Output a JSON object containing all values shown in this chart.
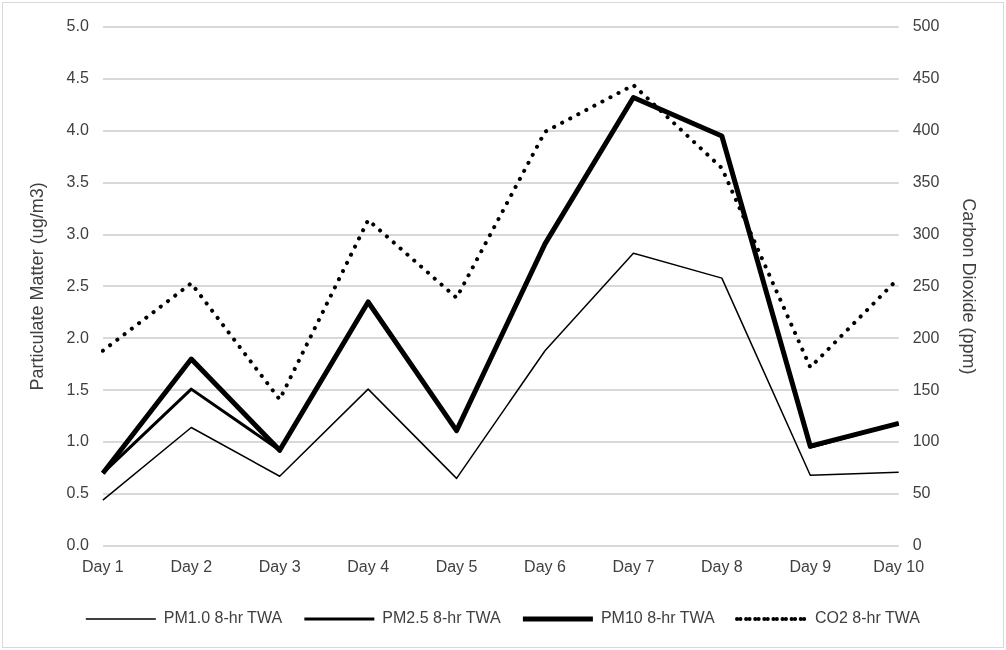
{
  "chart_data": {
    "type": "line",
    "categories": [
      "Day 1",
      "Day 2",
      "Day 3",
      "Day 4",
      "Day 5",
      "Day 6",
      "Day 7",
      "Day 8",
      "Day 9",
      "Day 10"
    ],
    "series": [
      {
        "name": "PM1.0 8-hr TWA",
        "color": "#000000",
        "line_style": "solid",
        "values": [
          0.44,
          1.14,
          0.67,
          1.51,
          0.65,
          1.88,
          2.82,
          2.58,
          0.68,
          0.71
        ]
      },
      {
        "name": "PM2.5 8-hr TWA",
        "color": "#000000",
        "line_style": "solid",
        "values": [
          0.7,
          1.51,
          0.92,
          2.35,
          1.11,
          2.91,
          4.32,
          3.95,
          0.95,
          1.18
        ]
      },
      {
        "name": "PM10 8-hr TWA",
        "color": "#000000",
        "line_style": "solid",
        "values": [
          0.7,
          1.8,
          0.92,
          2.35,
          1.11,
          2.91,
          4.32,
          3.95,
          0.96,
          1.18
        ]
      },
      {
        "name": "CO2 8-hr TWA",
        "color": "#000000",
        "line_style": "dotted",
        "axis": "y2",
        "values": [
          188,
          253,
          141,
          314,
          239,
          399,
          444,
          364,
          172,
          258
        ]
      }
    ],
    "ylabel": "Particulate Matter (ug/m3)",
    "y2label": "Carbon Dioxide (ppm)",
    "ylim": [
      0,
      5
    ],
    "yticks": [
      {
        "value": 0,
        "label": "0.0"
      },
      {
        "value": 0.5,
        "label": "0.5"
      },
      {
        "value": 1,
        "label": "1.0"
      },
      {
        "value": 1.5,
        "label": "1.5"
      },
      {
        "value": 2,
        "label": "2.0"
      },
      {
        "value": 2.5,
        "label": "2.5"
      },
      {
        "value": 3,
        "label": "3.0"
      },
      {
        "value": 3.5,
        "label": "3.5"
      },
      {
        "value": 4,
        "label": "4.0"
      },
      {
        "value": 4.5,
        "label": "4.5"
      },
      {
        "value": 5,
        "label": "5.0"
      }
    ],
    "y2lim": [
      0,
      500
    ],
    "y2ticks": [
      0,
      50,
      100,
      150,
      200,
      250,
      300,
      350,
      400,
      450,
      500
    ],
    "grid": "y",
    "legend": "bottom",
    "marker": "none"
  }
}
